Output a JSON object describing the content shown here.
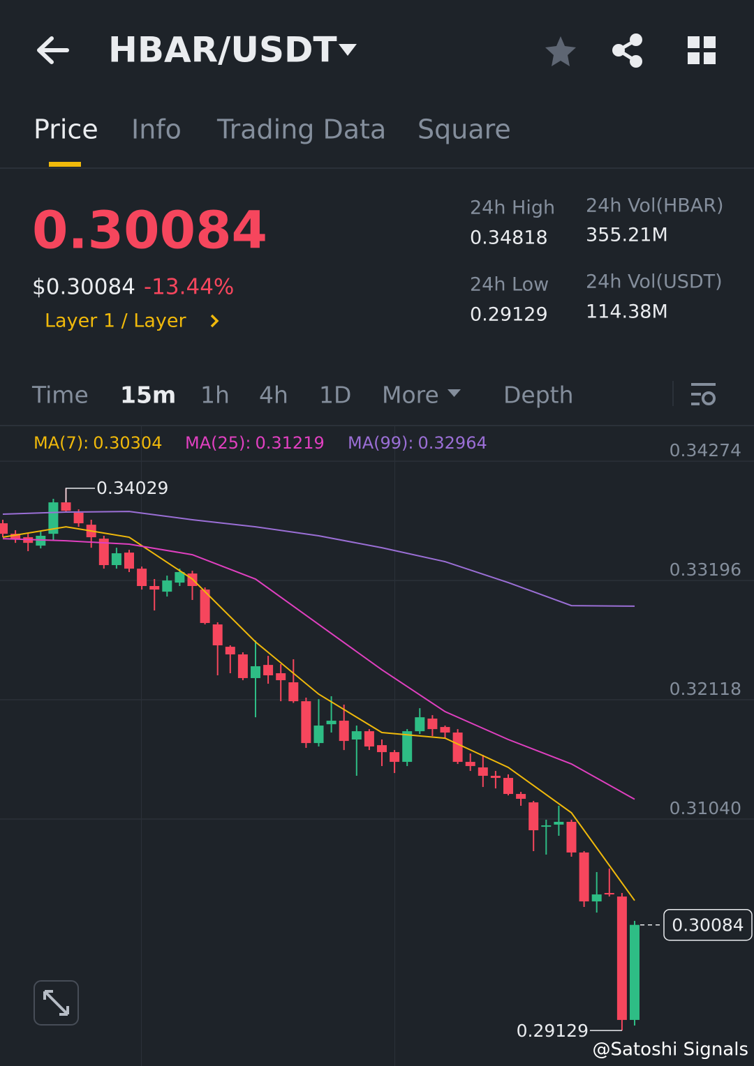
{
  "header": {
    "title": "HBAR/USDT"
  },
  "tabs": [
    "Price",
    "Info",
    "Trading Data",
    "Square"
  ],
  "summary": {
    "price": "0.30084",
    "usd_price": "$0.30084",
    "change": "-13.44%",
    "tag": "Layer 1 / Layer",
    "stats": [
      {
        "label": "24h High",
        "value": "0.34818"
      },
      {
        "label": "24h Low",
        "value": "0.29129"
      },
      {
        "label": "24h Vol(HBAR)",
        "value": "355.21M"
      },
      {
        "label": "24h Vol(USDT)",
        "value": "114.38M"
      }
    ]
  },
  "intervals": [
    "Time",
    "15m",
    "1h",
    "4h",
    "1D",
    "More",
    "Depth"
  ],
  "chart_data": {
    "type": "candlestick",
    "ylim": [
      0.28859,
      0.34596
    ],
    "yticks": [
      0.34274,
      0.33196,
      0.32118,
      {
        "value": 0.3104,
        "label": "0.31040"
      }
    ],
    "colors": {
      "up": "#2ebd85",
      "down": "#f6465d"
    },
    "open": [
      0.33713,
      0.33618,
      0.33587,
      0.33511,
      0.33618,
      0.33902,
      0.33808,
      0.337,
      0.33574,
      0.33335,
      0.33448,
      0.33303,
      0.33146,
      0.33095,
      0.33177,
      0.33259,
      0.33114,
      0.32799,
      0.32597,
      0.32528,
      0.32314,
      0.32433,
      0.32358,
      0.32276,
      0.32105,
      0.31727,
      0.31897,
      0.31929,
      0.31759,
      0.31834,
      0.31708,
      0.31645,
      0.31557,
      0.31834,
      0.31948,
      0.31872,
      0.31822,
      0.31557,
      0.31507,
      0.31431,
      0.31412,
      0.31267,
      0.31191,
      0.30971,
      0.3099,
      0.31015,
      0.30738,
      0.30296,
      0.30372,
      0.3034,
      0.29225
    ],
    "high": [
      0.33745,
      0.3365,
      0.33618,
      0.33637,
      0.33934,
      0.34029,
      0.33839,
      0.33745,
      0.336,
      0.33492,
      0.33473,
      0.33322,
      0.33209,
      0.3324,
      0.33303,
      0.33284,
      0.33133,
      0.32818,
      0.3261,
      0.32547,
      0.32654,
      0.32515,
      0.3244,
      0.32484,
      0.32137,
      0.32124,
      0.3215,
      0.32074,
      0.31885,
      0.31853,
      0.31759,
      0.31664,
      0.31853,
      0.32042,
      0.31979,
      0.31885,
      0.31853,
      0.31633,
      0.3162,
      0.31475,
      0.31444,
      0.31286,
      0.31204,
      0.31034,
      0.3116,
      0.31034,
      0.3075,
      0.30561,
      0.30593,
      0.30372,
      0.3012
    ],
    "low": [
      0.33587,
      0.33536,
      0.33461,
      0.33486,
      0.33555,
      0.33808,
      0.33681,
      0.33492,
      0.33303,
      0.33303,
      0.33272,
      0.33114,
      0.32925,
      0.33051,
      0.33146,
      0.3302,
      0.32799,
      0.32339,
      0.32358,
      0.32295,
      0.3196,
      0.32263,
      0.32105,
      0.3209,
      0.31683,
      0.31696,
      0.31822,
      0.31664,
      0.31431,
      0.31664,
      0.31519,
      0.31456,
      0.31519,
      0.31809,
      0.3179,
      0.31771,
      0.31538,
      0.31475,
      0.3133,
      0.31317,
      0.31254,
      0.3116,
      0.3075,
      0.30719,
      0.30889,
      0.307,
      0.30246,
      0.30195,
      0.3034,
      0.29129,
      0.29174
    ],
    "close": [
      0.33618,
      0.33574,
      0.33536,
      0.336,
      0.33902,
      0.33826,
      0.33713,
      0.33587,
      0.33335,
      0.33442,
      0.33303,
      0.33146,
      0.33114,
      0.33196,
      0.33272,
      0.33146,
      0.32812,
      0.3261,
      0.32528,
      0.32314,
      0.32421,
      0.32339,
      0.32295,
      0.32105,
      0.31727,
      0.31885,
      0.31929,
      0.31746,
      0.31834,
      0.31696,
      0.31645,
      0.31557,
      0.31834,
      0.3196,
      0.31853,
      0.31822,
      0.31557,
      0.31519,
      0.31431,
      0.31412,
      0.31267,
      0.31223,
      0.30939,
      0.30983,
      0.31015,
      0.30738,
      0.30296,
      0.30359,
      0.30359,
      0.29225,
      0.30084
    ],
    "ma_x": [
      0,
      5,
      10,
      15,
      20,
      25,
      30,
      35,
      40,
      45,
      50
    ],
    "series": [
      {
        "name": "MA(7):",
        "color": "#f0b90b",
        "values": [
          0.33587,
          0.33681,
          0.33587,
          0.33209,
          0.32641,
          0.32169,
          0.31822,
          0.31771,
          0.31507,
          0.31097,
          0.30304
        ]
      },
      {
        "name": "MA(25):",
        "color": "#e040c0",
        "values": [
          0.33574,
          0.33555,
          0.33524,
          0.33429,
          0.33209,
          0.32799,
          0.32389,
          0.32011,
          0.31759,
          0.31538,
          0.31219
        ]
      },
      {
        "name": "MA(99):",
        "color": "#9b6fd6",
        "values": [
          0.33795,
          0.33814,
          0.3382,
          0.33745,
          0.33681,
          0.336,
          0.33492,
          0.33366,
          0.33177,
          0.32969,
          0.32964
        ]
      }
    ],
    "max_label": 0.34029,
    "min_label": 0.29129,
    "last_price": 0.30084
  },
  "watermark": "@Satoshi Signals"
}
